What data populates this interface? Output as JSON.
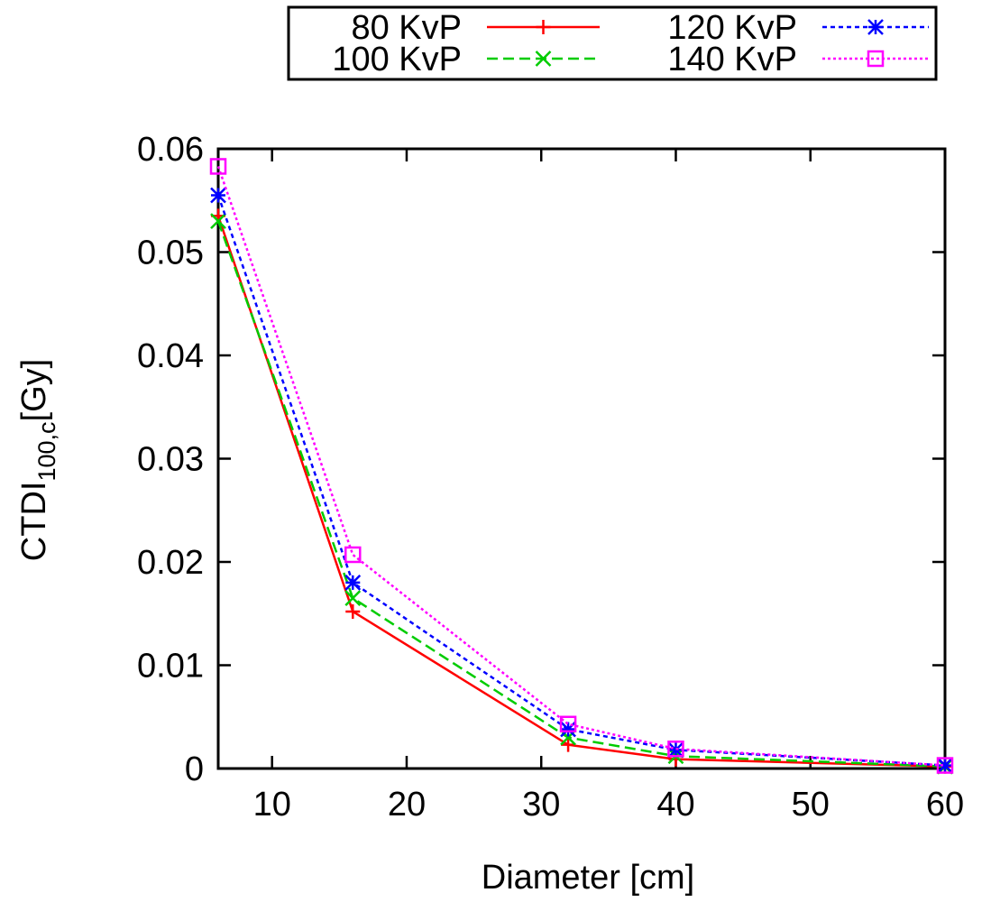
{
  "chart_data": {
    "type": "line",
    "xlabel": "Diameter [cm]",
    "ylabel": {
      "main": "CTDI",
      "subscript": "100,c",
      "suffix": "[Gy]"
    },
    "xlim": [
      6,
      60
    ],
    "ylim": [
      0,
      0.06
    ],
    "xticks": [
      10,
      20,
      30,
      40,
      50,
      60
    ],
    "yticks": [
      0,
      0.01,
      0.02,
      0.03,
      0.04,
      0.05,
      0.06
    ],
    "xtick_labels": [
      "10",
      "20",
      "30",
      "40",
      "50",
      "60"
    ],
    "ytick_labels": [
      "0",
      "0.01",
      "0.02",
      "0.03",
      "0.04",
      "0.05",
      "0.06"
    ],
    "legend_position": "top",
    "grid": false,
    "series": [
      {
        "name": "80 KvP",
        "color": "#ff0000",
        "dash": "solid",
        "marker": "plus",
        "x": [
          6,
          16,
          32,
          40,
          60
        ],
        "y": [
          0.0535,
          0.0152,
          0.0023,
          0.0009,
          0.0002
        ]
      },
      {
        "name": "100 KvP",
        "color": "#00cc00",
        "dash": "dashed",
        "marker": "cross",
        "x": [
          6,
          16,
          32,
          40,
          60
        ],
        "y": [
          0.053,
          0.0165,
          0.003,
          0.0012,
          0.0002
        ]
      },
      {
        "name": "120 KvP",
        "color": "#0000ff",
        "dash": "dotted",
        "marker": "star",
        "x": [
          6,
          16,
          32,
          40,
          60
        ],
        "y": [
          0.0555,
          0.018,
          0.0038,
          0.0018,
          0.0003
        ]
      },
      {
        "name": "140 KvP",
        "color": "#ff00ff",
        "dash": "fine-dotted",
        "marker": "square",
        "x": [
          6,
          16,
          32,
          40,
          60
        ],
        "y": [
          0.0583,
          0.0207,
          0.0043,
          0.0019,
          0.0003
        ]
      }
    ]
  }
}
